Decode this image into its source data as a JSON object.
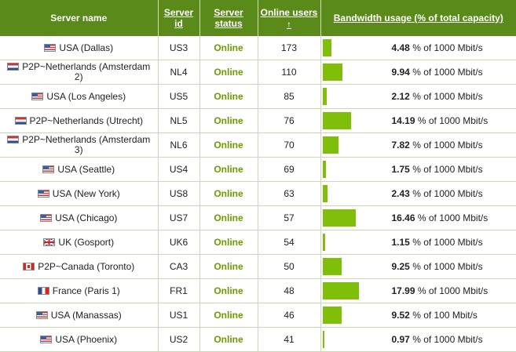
{
  "header": {
    "server_name": "Server name",
    "server_id": "Server id",
    "server_status": "Server status",
    "online_users": "Online users",
    "sort_arrow": "↑",
    "bandwidth": "Bandwidth usage (% of total capacity)"
  },
  "rows": [
    {
      "flag": "us",
      "name": "USA (Dallas)",
      "id": "US3",
      "status": "Online",
      "users": "173",
      "pct": "4.48",
      "capacity": "% of 1000 Mbit/s",
      "fill": 4.48
    },
    {
      "flag": "nl",
      "name": "P2P~Netherlands (Amsterdam 2)",
      "id": "NL4",
      "status": "Online",
      "users": "110",
      "pct": "9.94",
      "capacity": "% of 1000 Mbit/s",
      "fill": 9.94
    },
    {
      "flag": "us",
      "name": "USA (Los Angeles)",
      "id": "US5",
      "status": "Online",
      "users": "85",
      "pct": "2.12",
      "capacity": "% of 1000 Mbit/s",
      "fill": 2.12
    },
    {
      "flag": "nl",
      "name": "P2P~Netherlands (Utrecht)",
      "id": "NL5",
      "status": "Online",
      "users": "76",
      "pct": "14.19",
      "capacity": "% of 1000 Mbit/s",
      "fill": 14.19
    },
    {
      "flag": "nl",
      "name": "P2P~Netherlands (Amsterdam 3)",
      "id": "NL6",
      "status": "Online",
      "users": "70",
      "pct": "7.82",
      "capacity": "% of 1000 Mbit/s",
      "fill": 7.82
    },
    {
      "flag": "us",
      "name": "USA (Seattle)",
      "id": "US4",
      "status": "Online",
      "users": "69",
      "pct": "1.75",
      "capacity": "% of 1000 Mbit/s",
      "fill": 1.75
    },
    {
      "flag": "us",
      "name": "USA (New York)",
      "id": "US8",
      "status": "Online",
      "users": "63",
      "pct": "2.43",
      "capacity": "% of 1000 Mbit/s",
      "fill": 2.43
    },
    {
      "flag": "us",
      "name": "USA (Chicago)",
      "id": "US7",
      "status": "Online",
      "users": "57",
      "pct": "16.46",
      "capacity": "% of 1000 Mbit/s",
      "fill": 16.46
    },
    {
      "flag": "uk",
      "name": "UK (Gosport)",
      "id": "UK6",
      "status": "Online",
      "users": "54",
      "pct": "1.15",
      "capacity": "% of 1000 Mbit/s",
      "fill": 1.15
    },
    {
      "flag": "ca",
      "name": "P2P~Canada (Toronto)",
      "id": "CA3",
      "status": "Online",
      "users": "50",
      "pct": "9.25",
      "capacity": "% of 1000 Mbit/s",
      "fill": 9.25
    },
    {
      "flag": "fr",
      "name": "France (Paris 1)",
      "id": "FR1",
      "status": "Online",
      "users": "48",
      "pct": "17.99",
      "capacity": "% of 1000 Mbit/s",
      "fill": 17.99
    },
    {
      "flag": "us",
      "name": "USA (Manassas)",
      "id": "US1",
      "status": "Online",
      "users": "46",
      "pct": "9.52",
      "capacity": "% of 100 Mbit/s",
      "fill": 9.52
    },
    {
      "flag": "us",
      "name": "USA (Phoenix)",
      "id": "US2",
      "status": "Online",
      "users": "41",
      "pct": "0.97",
      "capacity": "% of 1000 Mbit/s",
      "fill": 0.97
    }
  ],
  "colors": {
    "header_bg": "#5a8a1a",
    "bar": "#7fbf0a",
    "status": "#6a9b00"
  }
}
